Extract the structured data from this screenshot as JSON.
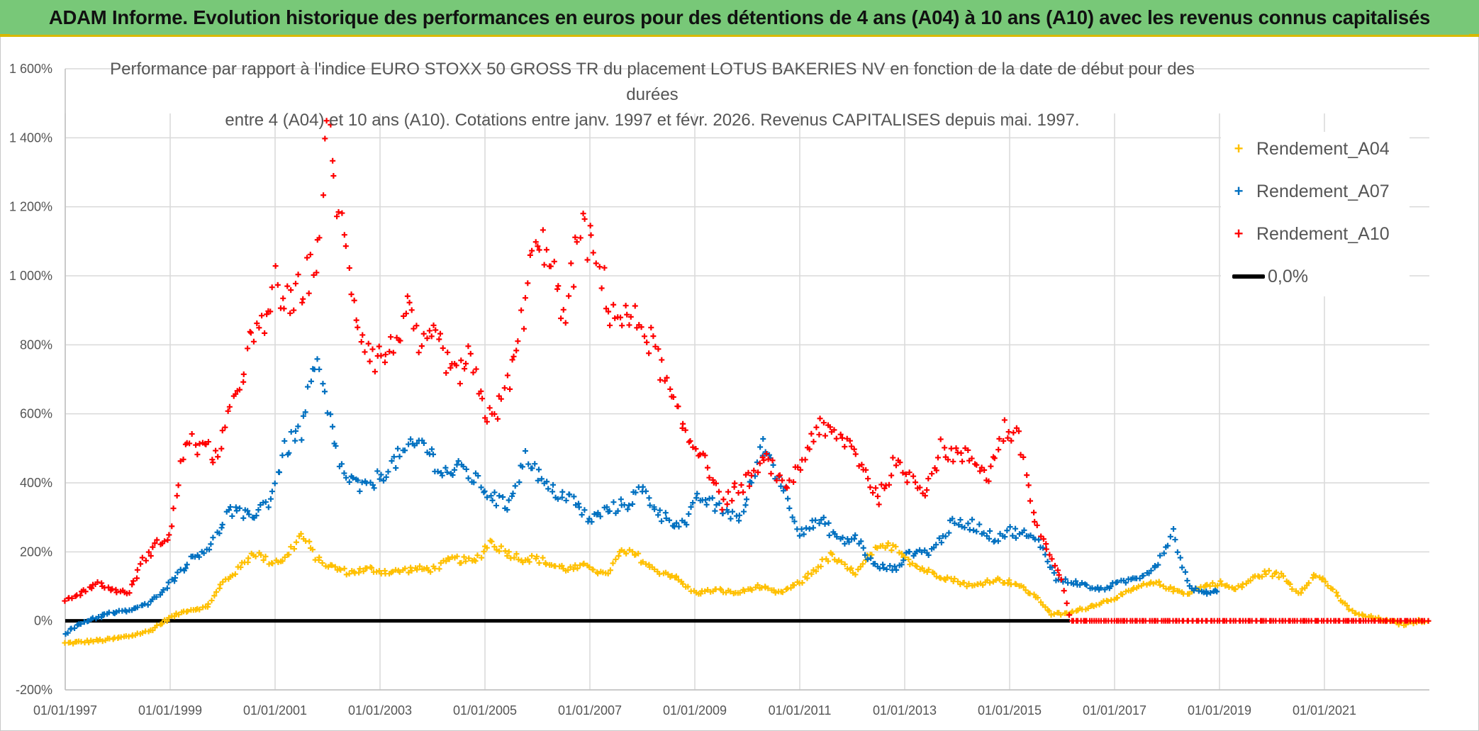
{
  "header": {
    "title": "ADAM Informe. Evolution historique des performances en euros pour des détentions de 4 ans (A04) à 10 ans (A10) avec les revenus connus capitalisés"
  },
  "colors": {
    "header_bg": "#78c878",
    "accent_yellow": "#d9b800",
    "A04": "#ffc000",
    "A07": "#0070c0",
    "A10": "#ff0000",
    "zero_line": "#000000",
    "grid": "#d9d9d9"
  },
  "chart_data": {
    "type": "scatter",
    "title_line1": "Performance par rapport à l'indice EURO STOXX 50 GROSS TR  du placement LOTUS BAKERIES NV en fonction de la date de début pour des durées",
    "title_line2": "entre 4 (A04) et 10 ans (A10). Cotations entre janv. 1997 et févr. 2026. Revenus CAPITALISES depuis mai. 1997.",
    "x_range_years": [
      1997.0,
      2023.0
    ],
    "ylim": [
      -200,
      1600
    ],
    "y_ticks": [
      -200,
      0,
      200,
      400,
      600,
      800,
      1000,
      1200,
      1400,
      1600
    ],
    "y_tick_labels": [
      "-200%",
      "0%",
      "200%",
      "400%",
      "600%",
      "800%",
      "1 000%",
      "1 200%",
      "1 400%",
      "1 600%"
    ],
    "x_ticks": [
      1997,
      1999,
      2001,
      2003,
      2005,
      2007,
      2009,
      2011,
      2013,
      2015,
      2017,
      2019,
      2021
    ],
    "x_tick_labels": [
      "01/01/1997",
      "01/01/1999",
      "01/01/2001",
      "01/01/2003",
      "01/01/2005",
      "01/01/2007",
      "01/01/2009",
      "01/01/2011",
      "01/01/2013",
      "01/01/2015",
      "01/01/2017",
      "01/01/2019",
      "01/01/2021"
    ],
    "legend": [
      {
        "name": "Rendement_A04",
        "marker": "+",
        "color": "#ffc000"
      },
      {
        "name": "Rendement_A07",
        "marker": "+",
        "color": "#0070c0"
      },
      {
        "name": "Rendement_A10",
        "marker": "+",
        "color": "#ff0000"
      },
      {
        "name": "0,0%",
        "marker": "line",
        "color": "#000000"
      }
    ],
    "zero_line": {
      "label": "0,0%",
      "value": 0,
      "x_start": 1997.0,
      "x_end": 2016.15
    },
    "series": [
      {
        "name": "Rendement_A04",
        "color": "#ffc000",
        "x": [
          1997.0,
          1997.4,
          1997.8,
          1998.2,
          1998.6,
          1999.0,
          1999.3,
          1999.7,
          2000.0,
          2000.3,
          2000.6,
          2000.9,
          2001.2,
          2001.5,
          2001.8,
          2002.0,
          2002.4,
          2002.8,
          2003.2,
          2003.6,
          2004.0,
          2004.4,
          2004.8,
          2005.1,
          2005.4,
          2005.7,
          2006.0,
          2006.3,
          2006.6,
          2007.0,
          2007.3,
          2007.6,
          2007.9,
          2008.2,
          2008.6,
          2009.0,
          2009.4,
          2009.8,
          2010.2,
          2010.6,
          2011.0,
          2011.3,
          2011.6,
          2011.9,
          2012.1,
          2012.4,
          2012.8,
          2013.2,
          2013.5,
          2013.9,
          2014.3,
          2014.7,
          2015.1,
          2015.5,
          2015.8,
          2016.1,
          2016.5,
          2016.9,
          2017.2,
          2017.5,
          2017.8,
          2018.1,
          2018.4,
          2018.7,
          2019.0,
          2019.3,
          2019.6,
          2019.9,
          2020.2,
          2020.5,
          2020.8,
          2021.0,
          2021.3,
          2021.6,
          2021.9,
          2022.2,
          2022.5,
          2022.8,
          2023.0
        ],
        "values": [
          -65,
          -60,
          -55,
          -45,
          -30,
          10,
          30,
          40,
          110,
          150,
          200,
          170,
          180,
          250,
          180,
          160,
          140,
          150,
          140,
          150,
          150,
          180,
          170,
          230,
          200,
          180,
          180,
          160,
          150,
          160,
          130,
          200,
          190,
          150,
          130,
          80,
          90,
          80,
          100,
          80,
          110,
          150,
          190,
          150,
          140,
          200,
          220,
          160,
          140,
          120,
          100,
          120,
          110,
          70,
          20,
          20,
          40,
          60,
          80,
          100,
          110,
          90,
          80,
          100,
          110,
          90,
          120,
          140,
          130,
          80,
          130,
          120,
          60,
          20,
          10,
          0,
          -10,
          0,
          0
        ]
      },
      {
        "name": "Rendement_A07",
        "color": "#0070c0",
        "x": [
          1997.0,
          1997.4,
          1997.8,
          1998.2,
          1998.6,
          1999.0,
          1999.4,
          1999.8,
          2000.1,
          2000.5,
          2000.9,
          2001.2,
          2001.5,
          2001.8,
          2002.0,
          2002.3,
          2002.7,
          2003.0,
          2003.4,
          2003.8,
          2004.2,
          2004.6,
          2005.0,
          2005.4,
          2005.8,
          2006.2,
          2006.6,
          2007.0,
          2007.3,
          2007.7,
          2008.0,
          2008.4,
          2008.8,
          2009.1,
          2009.5,
          2009.9,
          2010.3,
          2010.7,
          2011.0,
          2011.4,
          2011.8,
          2012.1,
          2012.4,
          2012.8,
          2013.1,
          2013.5,
          2013.9,
          2014.3,
          2014.7,
          2015.0,
          2015.3,
          2015.6,
          2015.9,
          2016.3,
          2016.7,
          2017.1,
          2017.5,
          2017.8,
          2018.1,
          2018.4,
          2018.7,
          2019.0
        ],
        "values": [
          -35,
          0,
          20,
          30,
          50,
          110,
          180,
          220,
          320,
          300,
          350,
          500,
          550,
          750,
          600,
          420,
          380,
          420,
          480,
          520,
          430,
          440,
          380,
          330,
          480,
          380,
          360,
          290,
          320,
          340,
          380,
          300,
          280,
          360,
          320,
          300,
          520,
          380,
          260,
          290,
          230,
          240,
          160,
          150,
          200,
          200,
          280,
          280,
          240,
          260,
          250,
          220,
          120,
          110,
          90,
          110,
          130,
          160,
          260,
          100,
          80,
          90
        ]
      },
      {
        "name": "Rendement_A10",
        "color": "#ff0000",
        "x": [
          1997.0,
          1997.3,
          1997.6,
          1997.9,
          1998.2,
          1998.5,
          1998.8,
          1999.0,
          1999.3,
          1999.6,
          1999.9,
          2000.2,
          2000.5,
          2000.8,
          2001.0,
          2001.3,
          2001.6,
          2001.8,
          2002.0,
          2002.3,
          2002.6,
          2002.9,
          2003.2,
          2003.5,
          2003.8,
          2004.1,
          2004.4,
          2004.7,
          2005.0,
          2005.3,
          2005.6,
          2005.9,
          2006.2,
          2006.5,
          2006.8,
          2007.1,
          2007.4,
          2007.7,
          2008.0,
          2008.3,
          2008.6,
          2008.9,
          2009.2,
          2009.5,
          2009.8,
          2010.1,
          2010.4,
          2010.7,
          2011.0,
          2011.3,
          2011.6,
          2011.9,
          2012.2,
          2012.5,
          2012.8,
          2013.1,
          2013.4,
          2013.7,
          2014.0,
          2014.3,
          2014.6,
          2014.9,
          2015.2,
          2015.5,
          2015.8,
          2016.0,
          2016.15,
          2017.0,
          2018.0,
          2019.0,
          2020.0,
          2021.0,
          2022.0,
          2023.0
        ],
        "values": [
          60,
          80,
          110,
          90,
          80,
          180,
          230,
          250,
          530,
          500,
          480,
          620,
          800,
          850,
          980,
          900,
          1000,
          1050,
          1420,
          1100,
          850,
          760,
          780,
          900,
          780,
          820,
          700,
          760,
          600,
          620,
          780,
          1050,
          1100,
          850,
          1150,
          1050,
          900,
          870,
          860,
          760,
          620,
          520,
          480,
          340,
          380,
          420,
          470,
          380,
          450,
          560,
          540,
          520,
          450,
          350,
          450,
          420,
          380,
          500,
          480,
          470,
          420,
          560,
          520,
          280,
          180,
          110,
          0,
          0,
          0,
          0,
          0,
          0,
          0,
          0
        ]
      }
    ]
  }
}
